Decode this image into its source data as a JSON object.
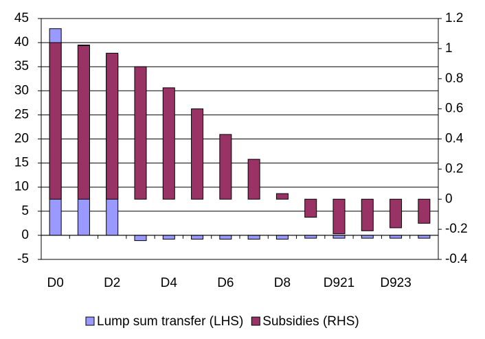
{
  "chart_data": {
    "type": "bar",
    "categories": [
      "D0",
      null,
      "D2",
      null,
      "D4",
      null,
      "D6",
      null,
      "D8",
      null,
      "D921",
      null,
      "D923",
      null
    ],
    "series": [
      {
        "name": "Lump sum transfer (LHS)",
        "color": "#9999ff",
        "values": [
          42.9,
          39.5,
          37.5,
          -1.1,
          -0.8,
          -0.8,
          -0.8,
          -0.8,
          -0.8,
          -0.6,
          -0.6,
          -0.6,
          -0.6,
          -0.6
        ]
      },
      {
        "name": "Subsidies (RHS)",
        "color": "#993366",
        "axis": "y2",
        "values": [
          1.04,
          1.02,
          0.97,
          0.88,
          0.74,
          0.6,
          0.43,
          0.265,
          0.037,
          -0.12,
          -0.23,
          -0.21,
          -0.19,
          -0.16
        ]
      }
    ],
    "ylim": [
      -5,
      45
    ],
    "yticks": [
      -5,
      0,
      5,
      10,
      15,
      20,
      25,
      30,
      35,
      40,
      45
    ],
    "y2lim": [
      -0.4,
      1.2
    ],
    "y2ticks": [
      -0.4,
      -0.2,
      0,
      0.2,
      0.4,
      0.6,
      0.8,
      1,
      1.2
    ],
    "grid": true,
    "legend": "bottom"
  }
}
